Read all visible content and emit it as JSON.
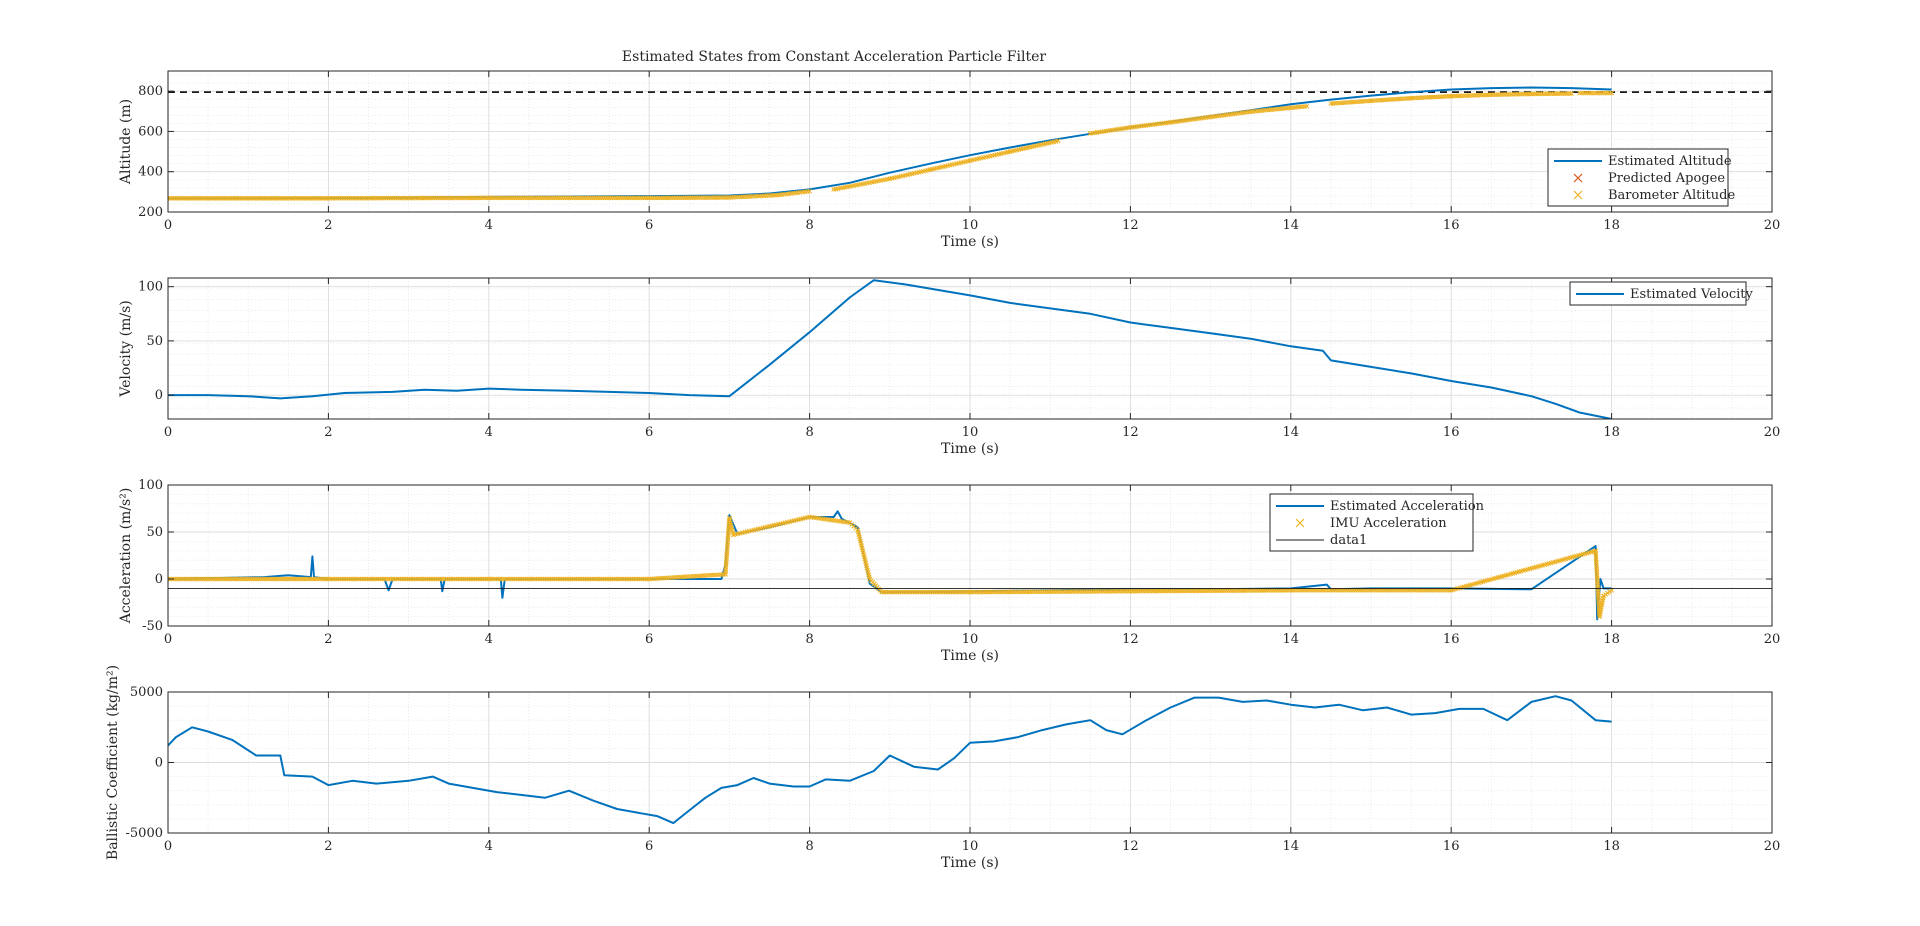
{
  "figure": {
    "title": "Estimated States from Constant Acceleration Particle Filter",
    "background": "#ffffff",
    "colors": {
      "blue": "#0072BD",
      "orange": "#EDB120",
      "red": "#D95319",
      "dash": "#1a1a1a",
      "grid": "#dcdcdc"
    }
  },
  "chart_data": [
    {
      "type": "line",
      "id": "altitude",
      "xlabel": "Time (s)",
      "ylabel": "Altitude (m)",
      "xlim": [
        0,
        20
      ],
      "ylim": [
        200,
        900
      ],
      "xticks": [
        0,
        2,
        4,
        6,
        8,
        10,
        12,
        14,
        16,
        18,
        20
      ],
      "yticks": [
        200,
        400,
        600,
        800
      ],
      "grid": true,
      "minor_grid": true,
      "legend_position": "lower-right",
      "reference_line": {
        "y": 795,
        "style": "dashed"
      },
      "series": [
        {
          "name": "Estimated Altitude",
          "style": "line",
          "color": "#0072BD",
          "x": [
            0,
            1,
            2,
            3,
            4,
            5,
            6,
            7,
            7.5,
            8,
            8.5,
            9,
            9.5,
            10,
            10.5,
            11,
            11.5,
            12,
            12.5,
            13,
            13.5,
            14,
            14.5,
            15,
            15.5,
            16,
            16.5,
            17,
            17.5,
            18
          ],
          "y": [
            268,
            269,
            270,
            272,
            275,
            277,
            279,
            282,
            292,
            312,
            345,
            395,
            440,
            482,
            520,
            556,
            588,
            620,
            648,
            677,
            705,
            735,
            758,
            778,
            795,
            808,
            815,
            818,
            815,
            808
          ]
        },
        {
          "name": "Predicted Apogee",
          "style": "marker-x",
          "color": "#D95319",
          "x": [],
          "y": []
        },
        {
          "name": "Barometer Altitude",
          "style": "marker-x",
          "color": "#EDB120",
          "segments": [
            {
              "x": [
                0,
                2,
                4,
                6,
                7,
                7.6,
                8
              ],
              "y": [
                268,
                268,
                270,
                270,
                272,
                284,
                303
              ]
            },
            {
              "x": [
                8.3,
                9,
                9.5,
                10,
                10.5,
                11.1
              ],
              "y": [
                312,
                365,
                410,
                455,
                500,
                553
              ]
            },
            {
              "x": [
                11.5,
                12,
                12.5,
                13,
                13.5,
                14.2
              ],
              "y": [
                590,
                620,
                645,
                672,
                698,
                725
              ]
            },
            {
              "x": [
                14.5,
                15,
                15.5,
                16,
                16.5,
                17,
                17.5
              ],
              "y": [
                738,
                752,
                765,
                775,
                782,
                786,
                788
              ]
            },
            {
              "x": [
                17.6,
                18
              ],
              "y": [
                790,
                790
              ]
            }
          ]
        }
      ]
    },
    {
      "type": "line",
      "id": "velocity",
      "xlabel": "Time (s)",
      "ylabel": "Velocity (m/s)",
      "xlim": [
        0,
        20
      ],
      "ylim": [
        -22,
        108
      ],
      "xticks": [
        0,
        2,
        4,
        6,
        8,
        10,
        12,
        14,
        16,
        18,
        20
      ],
      "yticks": [
        0,
        50,
        100
      ],
      "grid": true,
      "minor_grid": true,
      "legend_position": "top-right",
      "series": [
        {
          "name": "Estimated Velocity",
          "style": "line",
          "color": "#0072BD",
          "x": [
            0,
            0.5,
            1,
            1.4,
            1.8,
            2.2,
            2.8,
            3.2,
            3.6,
            4,
            4.4,
            5,
            5.5,
            6,
            6.5,
            7,
            7.5,
            8,
            8.5,
            8.8,
            9.2,
            10,
            10.5,
            11,
            11.5,
            12,
            12.5,
            13,
            13.5,
            14,
            14.4,
            14.5,
            15,
            15.5,
            16,
            16.5,
            17,
            17.3,
            17.6,
            18
          ],
          "y": [
            0,
            0,
            -1,
            -3,
            -1,
            2,
            3,
            5,
            4,
            6,
            5,
            4,
            3,
            2,
            0,
            -1,
            28,
            58,
            90,
            106,
            102,
            92,
            85,
            80,
            75,
            67,
            62,
            57,
            52,
            45,
            41,
            32,
            26,
            20,
            13,
            7,
            -1,
            -8,
            -16,
            -22
          ]
        }
      ]
    },
    {
      "type": "line",
      "id": "acceleration",
      "xlabel": "Time (s)",
      "ylabel": "Acceleration (m/s²)",
      "xlim": [
        0,
        20
      ],
      "ylim": [
        -50,
        100
      ],
      "xticks": [
        0,
        2,
        4,
        6,
        8,
        10,
        12,
        14,
        16,
        18,
        20
      ],
      "yticks": [
        -50,
        0,
        50,
        100
      ],
      "grid": true,
      "minor_grid": true,
      "legend_position": "top-right",
      "series": [
        {
          "name": "Estimated Acceleration",
          "style": "line",
          "color": "#0072BD",
          "x": [
            0,
            1.2,
            1.5,
            1.78,
            1.8,
            1.82,
            2,
            2.7,
            2.75,
            2.8,
            3.4,
            3.42,
            3.45,
            4.15,
            4.17,
            4.2,
            5,
            6,
            6.9,
            6.95,
            7,
            7.1,
            7.5,
            8,
            8.3,
            8.35,
            8.4,
            8.6,
            8.75,
            8.9,
            10,
            11,
            12,
            13,
            14,
            14.45,
            14.5,
            15,
            16,
            17,
            17.8,
            17.82,
            17.86,
            17.9,
            18
          ],
          "y": [
            0,
            2,
            4,
            2,
            24,
            2,
            0,
            0,
            -12,
            0,
            0,
            -13,
            0,
            0,
            -20,
            0,
            0,
            0,
            0,
            15,
            68,
            48,
            55,
            66,
            66,
            72,
            64,
            55,
            -5,
            -14,
            -13,
            -12,
            -11,
            -11,
            -10,
            -6,
            -11,
            -10,
            -10,
            -11,
            35,
            -43,
            0,
            -10,
            -10
          ]
        },
        {
          "name": "IMU Acceleration",
          "style": "marker-x",
          "color": "#EDB120",
          "x": [
            0,
            2,
            4,
            6,
            6.95,
            7.0,
            7.05,
            7.5,
            8,
            8.5,
            8.6,
            8.75,
            8.9,
            10,
            12,
            14,
            16,
            17.8,
            17.85,
            17.9,
            18
          ],
          "y": [
            0,
            0,
            0,
            0,
            5,
            65,
            47,
            56,
            66,
            60,
            52,
            0,
            -14,
            -14,
            -13,
            -12,
            -12,
            30,
            -40,
            -18,
            -12
          ]
        },
        {
          "name": "data1",
          "style": "thin-line",
          "color": "#1a1a1a",
          "x": [
            0,
            20
          ],
          "y": [
            -10,
            -10
          ]
        }
      ]
    },
    {
      "type": "line",
      "id": "ballistic",
      "xlabel": "Time (s)",
      "ylabel": "Ballistic Coefficient (kg/m²)",
      "xlim": [
        0,
        20
      ],
      "ylim": [
        -5000,
        5000
      ],
      "xticks": [
        0,
        2,
        4,
        6,
        8,
        10,
        12,
        14,
        16,
        18,
        20
      ],
      "yticks": [
        -5000,
        0,
        5000
      ],
      "grid": true,
      "minor_grid": true,
      "legend_position": "none",
      "series": [
        {
          "name": "",
          "style": "line",
          "color": "#0072BD",
          "x": [
            0,
            0.1,
            0.3,
            0.5,
            0.8,
            1.1,
            1.4,
            1.45,
            1.8,
            2.0,
            2.3,
            2.6,
            3.0,
            3.3,
            3.5,
            3.8,
            4.1,
            4.4,
            4.7,
            5.0,
            5.3,
            5.6,
            5.9,
            6.1,
            6.3,
            6.5,
            6.7,
            6.9,
            7.1,
            7.3,
            7.5,
            7.8,
            8.0,
            8.2,
            8.5,
            8.8,
            9.0,
            9.3,
            9.6,
            9.8,
            10.0,
            10.3,
            10.6,
            10.9,
            11.2,
            11.5,
            11.7,
            11.9,
            12.2,
            12.5,
            12.8,
            13.1,
            13.4,
            13.7,
            14.0,
            14.3,
            14.6,
            14.9,
            15.2,
            15.5,
            15.8,
            16.1,
            16.4,
            16.7,
            17.0,
            17.3,
            17.5,
            17.8,
            18.0
          ],
          "y": [
            1200,
            1800,
            2500,
            2200,
            1600,
            500,
            500,
            -900,
            -1000,
            -1600,
            -1300,
            -1500,
            -1300,
            -1000,
            -1500,
            -1800,
            -2100,
            -2300,
            -2500,
            -2000,
            -2700,
            -3300,
            -3600,
            -3800,
            -4300,
            -3400,
            -2500,
            -1800,
            -1600,
            -1100,
            -1500,
            -1700,
            -1700,
            -1200,
            -1300,
            -600,
            500,
            -300,
            -500,
            300,
            1400,
            1500,
            1800,
            2300,
            2700,
            3000,
            2300,
            2000,
            3000,
            3900,
            4600,
            4600,
            4300,
            4400,
            4100,
            3900,
            4100,
            3700,
            3900,
            3400,
            3500,
            3800,
            3800,
            3000,
            4300,
            4700,
            4400,
            3000,
            2900
          ]
        }
      ]
    }
  ]
}
